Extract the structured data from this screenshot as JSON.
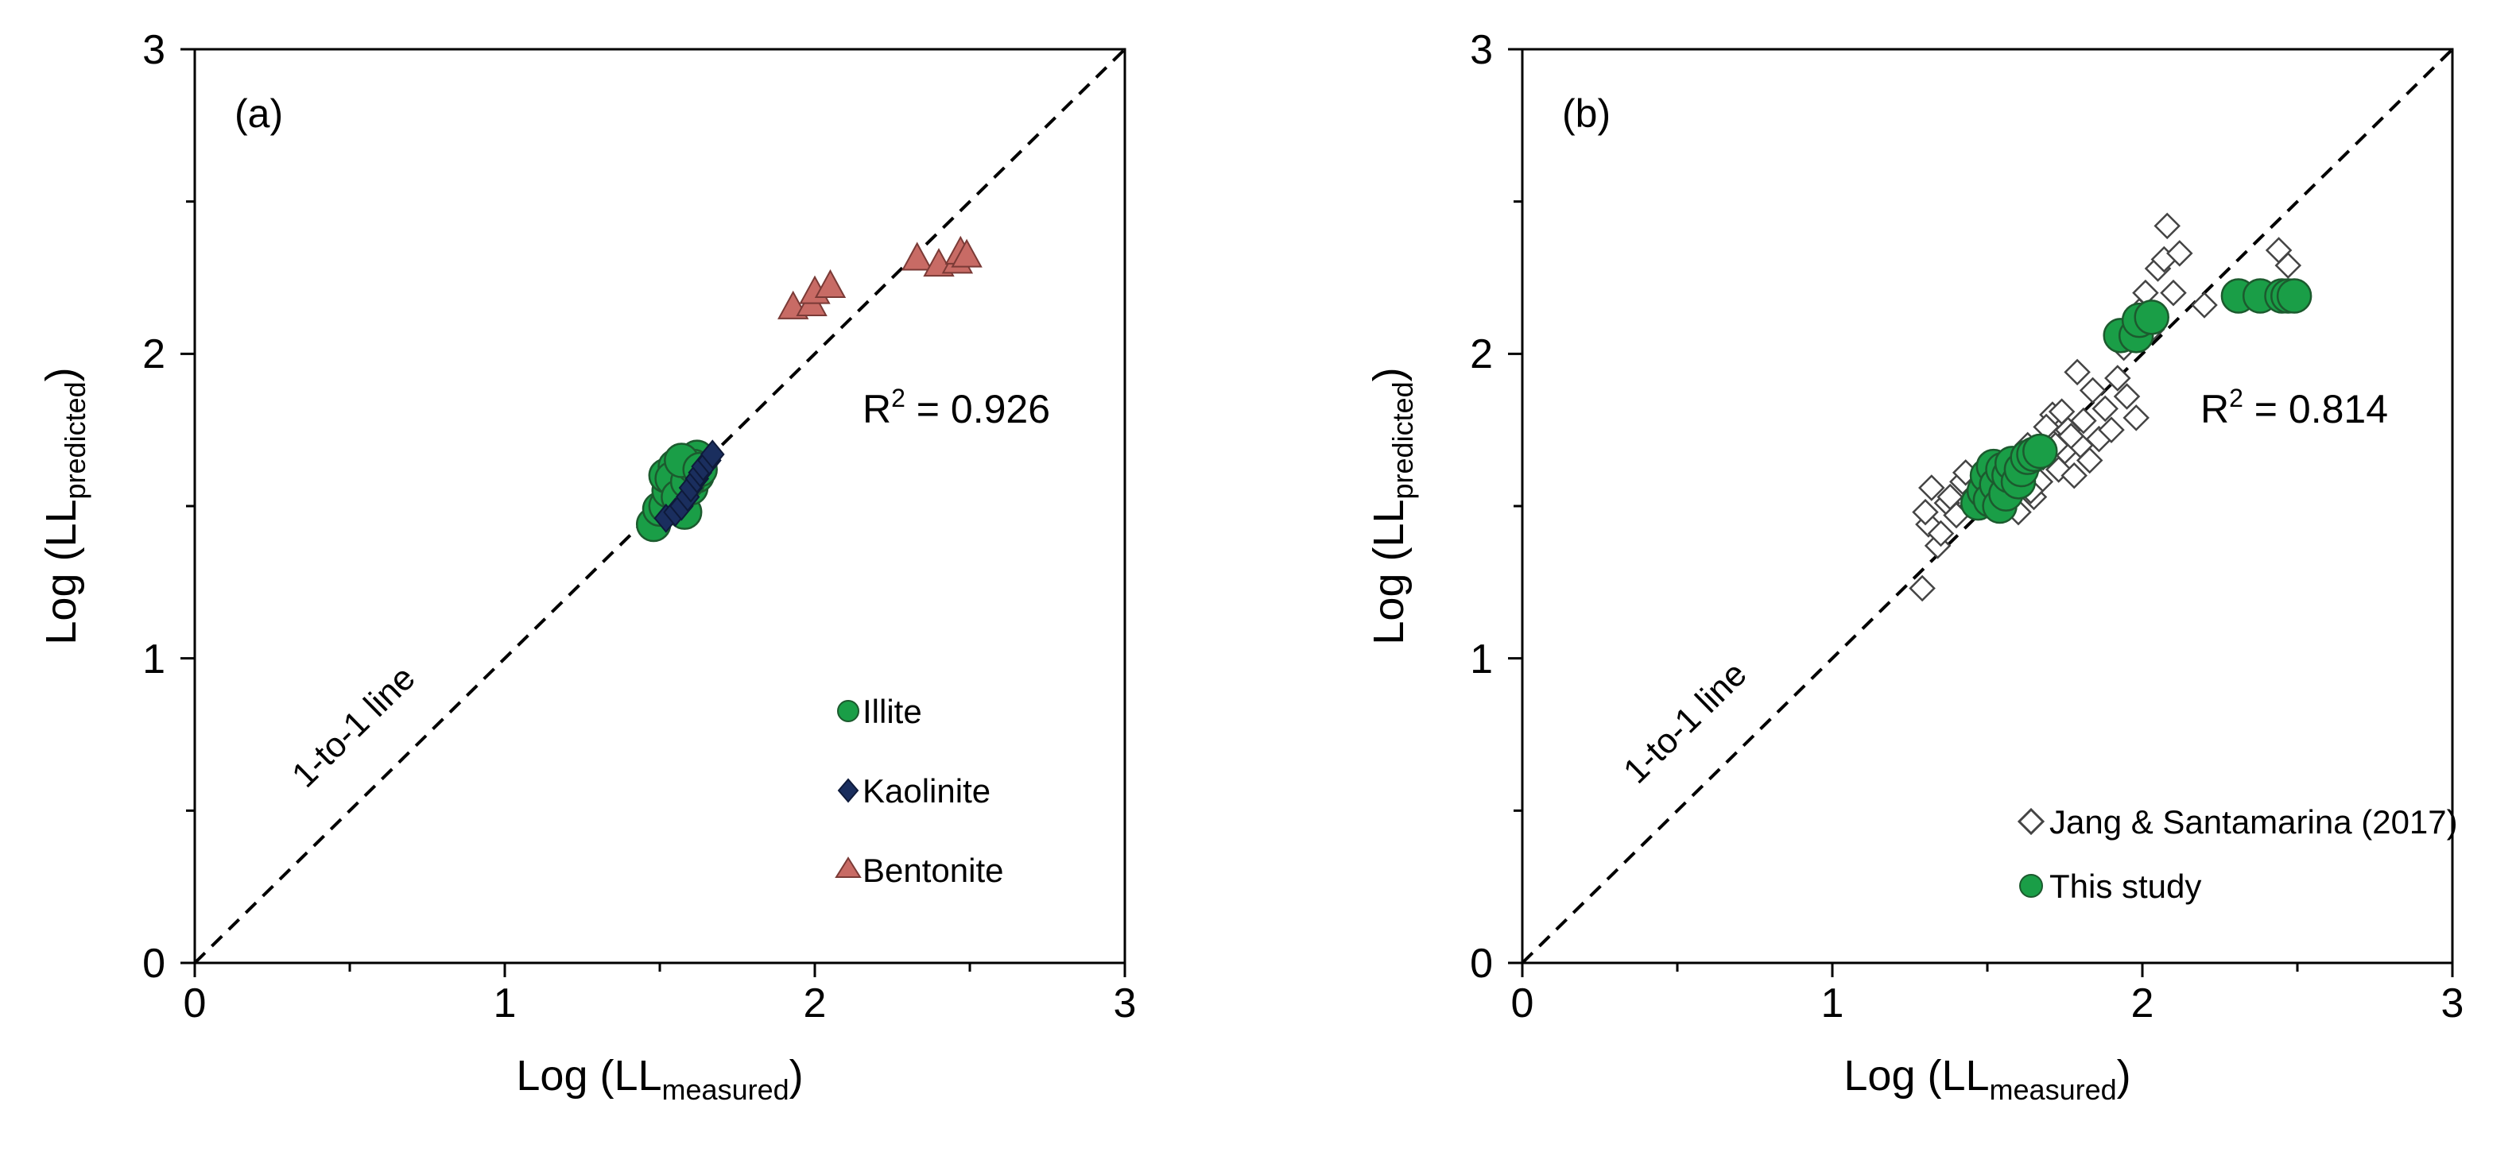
{
  "chart_data": [
    {
      "type": "scatter",
      "panel_label": "(a)",
      "xlabel": {
        "main": "Log (LL",
        "sub": "measured",
        "end": ")"
      },
      "ylabel": {
        "main": "Log (LL",
        "sub": "predicted",
        "end": ")"
      },
      "xlim": [
        0,
        3
      ],
      "ylim": [
        0,
        3
      ],
      "xticks": [
        "0",
        "1",
        "2",
        "3"
      ],
      "yticks": [
        "0",
        "1",
        "2",
        "3"
      ],
      "r2": {
        "prefix": "R",
        "sup": "2",
        "suffix": " = 0.926"
      },
      "reference_line": {
        "label": "1-to-1 line",
        "from": [
          0,
          0
        ],
        "to": [
          3,
          3
        ]
      },
      "legend_placement": "bottom-right",
      "series": [
        {
          "name": "Illite",
          "marker": "circle",
          "color": "#1a9e47",
          "points": [
            [
              1.48,
              1.44
            ],
            [
              1.5,
              1.49
            ],
            [
              1.52,
              1.5
            ],
            [
              1.53,
              1.55
            ],
            [
              1.52,
              1.6
            ],
            [
              1.55,
              1.63
            ],
            [
              1.56,
              1.57
            ],
            [
              1.57,
              1.52
            ],
            [
              1.58,
              1.48
            ],
            [
              1.58,
              1.62
            ],
            [
              1.6,
              1.64
            ],
            [
              1.6,
              1.56
            ],
            [
              1.62,
              1.6
            ],
            [
              1.62,
              1.66
            ],
            [
              1.54,
              1.59
            ],
            [
              1.56,
              1.53
            ],
            [
              1.59,
              1.58
            ],
            [
              1.61,
              1.63
            ],
            [
              1.57,
              1.65
            ],
            [
              1.63,
              1.62
            ]
          ]
        },
        {
          "name": "Kaolinite",
          "marker": "diamond",
          "color": "#1a2e5e",
          "points": [
            [
              1.52,
              1.46
            ],
            [
              1.55,
              1.48
            ],
            [
              1.57,
              1.5
            ],
            [
              1.59,
              1.53
            ],
            [
              1.6,
              1.56
            ],
            [
              1.62,
              1.59
            ],
            [
              1.63,
              1.61
            ],
            [
              1.64,
              1.63
            ],
            [
              1.66,
              1.65
            ],
            [
              1.67,
              1.67
            ]
          ]
        },
        {
          "name": "Bentonite",
          "marker": "triangle",
          "color": "#c86b65",
          "points": [
            [
              1.93,
              2.15
            ],
            [
              1.99,
              2.16
            ],
            [
              2.0,
              2.2
            ],
            [
              2.05,
              2.22
            ],
            [
              2.33,
              2.31
            ],
            [
              2.4,
              2.29
            ],
            [
              2.46,
              2.3
            ],
            [
              2.47,
              2.33
            ],
            [
              2.49,
              2.32
            ]
          ]
        }
      ]
    },
    {
      "type": "scatter",
      "panel_label": "(b)",
      "xlabel": {
        "main": "Log (LL",
        "sub": "measured",
        "end": ")"
      },
      "ylabel": {
        "main": "Log (LL",
        "sub": "predicted",
        "end": ")"
      },
      "xlim": [
        0,
        3
      ],
      "ylim": [
        0,
        3
      ],
      "xticks": [
        "0",
        "1",
        "2",
        "3"
      ],
      "yticks": [
        "0",
        "1",
        "2",
        "3"
      ],
      "r2": {
        "prefix": "R",
        "sup": "2",
        "suffix": " = 0.814"
      },
      "reference_line": {
        "label": "1-to-1 line",
        "from": [
          0,
          0
        ],
        "to": [
          3,
          3
        ]
      },
      "legend_placement": "bottom-right",
      "series": [
        {
          "name": "Jang & Santamarina (2017)",
          "marker": "open-diamond",
          "color": "#444444",
          "points": [
            [
              1.29,
              1.23
            ],
            [
              1.31,
              1.44
            ],
            [
              1.3,
              1.48
            ],
            [
              1.32,
              1.56
            ],
            [
              1.34,
              1.37
            ],
            [
              1.35,
              1.41
            ],
            [
              1.37,
              1.51
            ],
            [
              1.38,
              1.53
            ],
            [
              1.4,
              1.47
            ],
            [
              1.42,
              1.58
            ],
            [
              1.43,
              1.61
            ],
            [
              1.45,
              1.5
            ],
            [
              1.47,
              1.55
            ],
            [
              1.5,
              1.52
            ],
            [
              1.52,
              1.58
            ],
            [
              1.55,
              1.6
            ],
            [
              1.58,
              1.62
            ],
            [
              1.6,
              1.48
            ],
            [
              1.62,
              1.65
            ],
            [
              1.63,
              1.7
            ],
            [
              1.65,
              1.53
            ],
            [
              1.67,
              1.58
            ],
            [
              1.68,
              1.66
            ],
            [
              1.7,
              1.72
            ],
            [
              1.71,
              1.8
            ],
            [
              1.73,
              1.62
            ],
            [
              1.75,
              1.68
            ],
            [
              1.76,
              1.75
            ],
            [
              1.78,
              1.6
            ],
            [
              1.8,
              1.7
            ],
            [
              1.81,
              1.78
            ],
            [
              1.83,
              1.65
            ],
            [
              1.84,
              1.88
            ],
            [
              1.86,
              1.72
            ],
            [
              1.88,
              1.82
            ],
            [
              1.9,
              1.75
            ],
            [
              1.92,
              1.92
            ],
            [
              1.94,
              2.02
            ],
            [
              1.95,
              1.86
            ],
            [
              1.97,
              2.1
            ],
            [
              1.98,
              1.79
            ],
            [
              1.99,
              2.14
            ],
            [
              2.01,
              2.2
            ],
            [
              2.03,
              2.08
            ],
            [
              2.05,
              2.28
            ],
            [
              2.07,
              2.31
            ],
            [
              2.08,
              2.42
            ],
            [
              2.1,
              2.2
            ],
            [
              2.12,
              2.33
            ],
            [
              2.2,
              2.16
            ],
            [
              2.44,
              2.34
            ],
            [
              2.47,
              2.29
            ],
            [
              1.74,
              1.81
            ],
            [
              1.69,
              1.76
            ],
            [
              1.79,
              1.94
            ],
            [
              1.66,
              1.67
            ],
            [
              1.72,
              1.7
            ],
            [
              1.77,
              1.73
            ],
            [
              1.59,
              1.57
            ],
            [
              1.64,
              1.55
            ]
          ]
        },
        {
          "name": "This study",
          "marker": "circle",
          "color": "#1a9e47",
          "points": [
            [
              1.47,
              1.51
            ],
            [
              1.49,
              1.55
            ],
            [
              1.5,
              1.6
            ],
            [
              1.51,
              1.52
            ],
            [
              1.52,
              1.63
            ],
            [
              1.53,
              1.57
            ],
            [
              1.54,
              1.5
            ],
            [
              1.55,
              1.62
            ],
            [
              1.56,
              1.54
            ],
            [
              1.57,
              1.6
            ],
            [
              1.58,
              1.64
            ],
            [
              1.6,
              1.58
            ],
            [
              1.61,
              1.62
            ],
            [
              1.63,
              1.66
            ],
            [
              1.65,
              1.67
            ],
            [
              1.67,
              1.68
            ],
            [
              1.93,
              2.06
            ],
            [
              1.98,
              2.06
            ],
            [
              1.99,
              2.11
            ],
            [
              2.03,
              2.12
            ],
            [
              2.31,
              2.19
            ],
            [
              2.38,
              2.19
            ],
            [
              2.45,
              2.19
            ],
            [
              2.47,
              2.19
            ],
            [
              2.49,
              2.19
            ]
          ]
        }
      ]
    }
  ]
}
